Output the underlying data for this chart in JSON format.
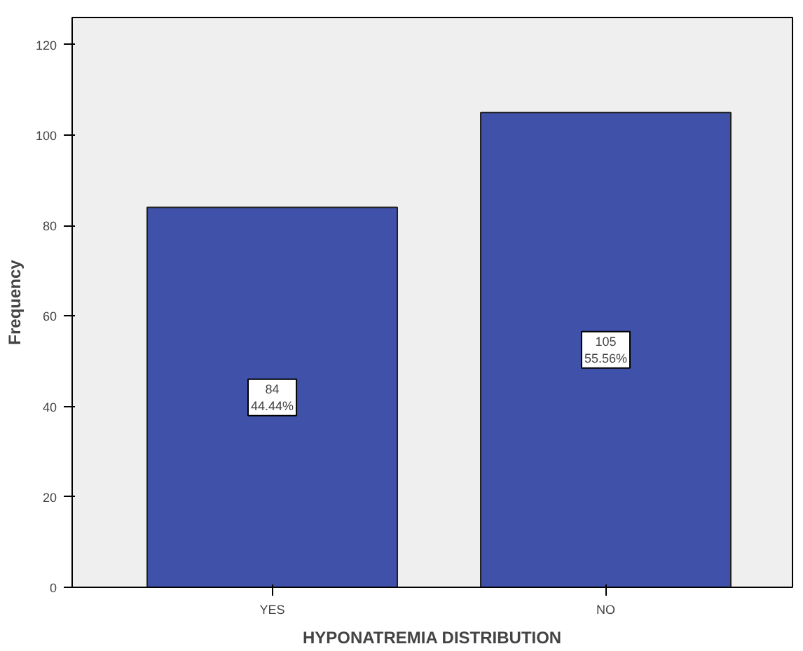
{
  "chart_data": {
    "type": "bar",
    "xlabel": "HYPONATREMIA DISTRIBUTION",
    "ylabel": "Frequency",
    "categories": [
      "YES",
      "NO"
    ],
    "values": [
      84,
      105
    ],
    "value_labels": [
      "84\n44.44%",
      "105\n55.56%"
    ],
    "color": "#3f51a8",
    "ylim": [
      0,
      126
    ],
    "yticks": [
      0,
      20,
      40,
      60,
      80,
      100,
      120
    ],
    "grid": false
  }
}
